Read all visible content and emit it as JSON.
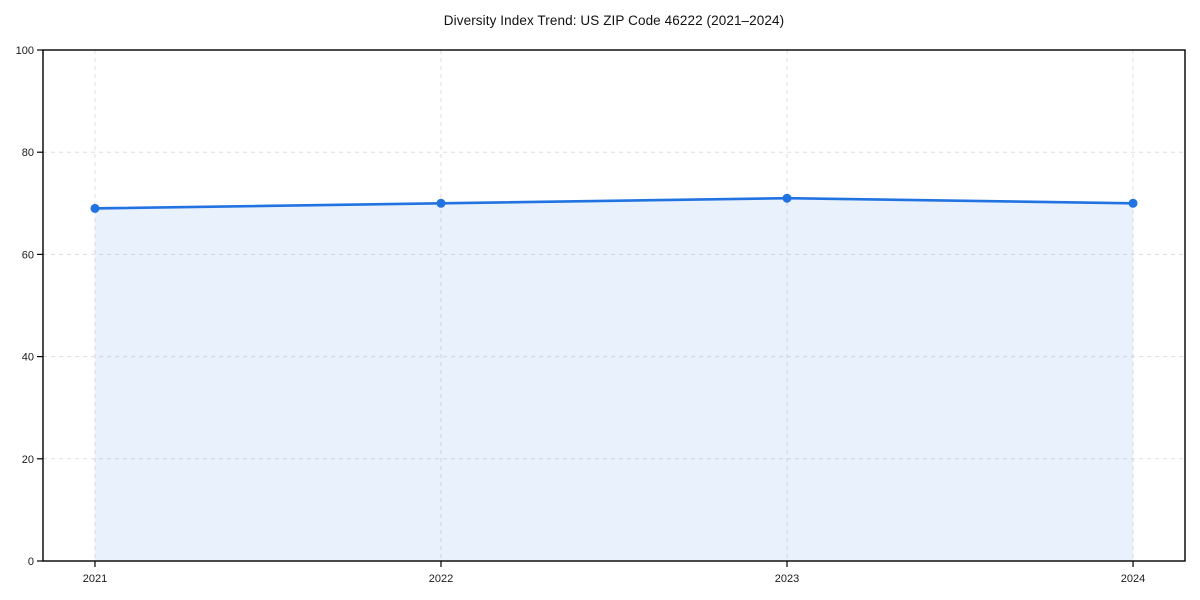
{
  "chart_data": {
    "type": "area",
    "title": "Diversity Index Trend: US ZIP Code 46222 (2021–2024)",
    "x": [
      "2021",
      "2022",
      "2023",
      "2024"
    ],
    "series": [
      {
        "name": "Diversity Index",
        "values": [
          69,
          70,
          71,
          70
        ]
      }
    ],
    "xlabel": "",
    "ylabel": "",
    "ylim": [
      0,
      100
    ],
    "yticks": [
      0,
      20,
      40,
      60,
      80,
      100
    ],
    "grid": "dashed gridlines on both axes",
    "legend_position": "none",
    "marker": "circle",
    "colors": {
      "line": "#2273e2",
      "fill": "#2273e2",
      "fill_opacity": 0.1,
      "grid": "#dedede",
      "axis": "#000000",
      "text": "#1a1a1a"
    }
  }
}
